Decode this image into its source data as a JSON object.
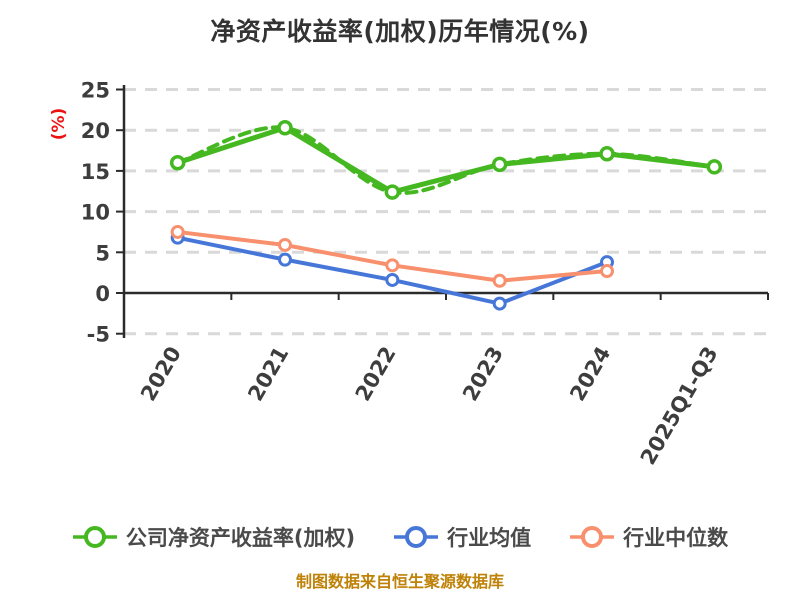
{
  "caption": "制图数据来自恒生聚源数据库",
  "chart_data": {
    "type": "line",
    "title": "净资产收益率(加权)历年情况(%)",
    "ylabel": "(%)",
    "xlabel": "",
    "categories": [
      "2020",
      "2021",
      "2022",
      "2023",
      "2024",
      "2025Q1-Q3"
    ],
    "series": [
      {
        "name": "公司净资产收益率(加权)",
        "color": "#45b821",
        "line_style": "solid with dashed smooth overlay",
        "values": [
          16.0,
          20.3,
          12.4,
          15.8,
          17.1,
          15.5
        ]
      },
      {
        "name": "行业均值",
        "color": "#4677d8",
        "line_style": "solid",
        "values": [
          6.8,
          4.1,
          1.6,
          -1.3,
          3.8,
          null
        ]
      },
      {
        "name": "行业中位数",
        "color": "#f8906e",
        "line_style": "solid",
        "values": [
          7.5,
          5.9,
          3.4,
          1.5,
          2.7,
          null
        ]
      }
    ],
    "ylim": [
      -5,
      25
    ],
    "yticks": [
      25,
      20,
      15,
      10,
      5,
      0,
      -5
    ],
    "x_tick_label_rotation_deg": 60,
    "grid": "horizontal dashed",
    "legend_position": "bottom",
    "marker": "circle, white fill, colored ring"
  },
  "colors": {
    "title_text": "#333333",
    "tick_text": "#3d3d3d",
    "y_unit_text": "#ee1111",
    "legend_text": "#4a4a4a",
    "caption_text": "#bf8208",
    "grid_line": "#d9d9d9",
    "axis_line": "#2b2b2b",
    "background": "#ffffff"
  }
}
